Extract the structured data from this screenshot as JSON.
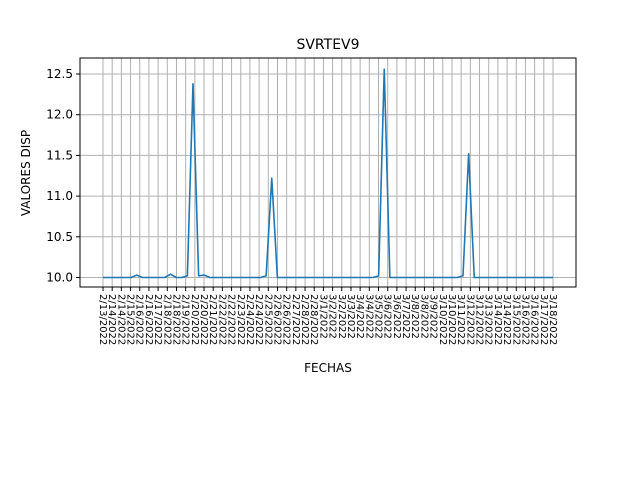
{
  "chart_data": {
    "type": "line",
    "title": "SVRTEV9",
    "xlabel": "FECHAS",
    "ylabel": "VALORES DISP",
    "ylim": [
      9.85,
      12.7
    ],
    "yticks": [
      "10.0",
      "10.5",
      "11.0",
      "11.5",
      "12.0",
      "12.5"
    ],
    "grid": true,
    "categories": [
      "2/13/2022",
      "2/14/2022",
      "2/15/2022",
      "2/16/2022",
      "2/17/2022",
      "2/18/2022",
      "2/19/2022",
      "2/20/2022",
      "2/21/2022",
      "2/22/2022",
      "2/23/2022",
      "2/24/2022",
      "2/25/2022",
      "2/26/2022",
      "2/27/2022",
      "2/28/2022",
      "3/1/2022",
      "3/2/2022",
      "3/3/2022",
      "3/4/2022",
      "3/5/2022",
      "3/6/2022",
      "3/7/2022",
      "3/8/2022",
      "3/9/2022",
      "3/10/2022",
      "3/11/2022",
      "3/12/2022",
      "3/13/2022",
      "3/14/2022",
      "3/15/2022",
      "3/16/2022",
      "3/17/2022",
      "3/18/2022"
    ],
    "x_labels": [
      "2/13/2022",
      "2/14/2022",
      "2/14/2022",
      "2/15/2022",
      "2/16/2022",
      "2/16/2022",
      "2/17/2022",
      "2/18/2022",
      "2/18/2022",
      "2/19/2022",
      "2/20/2022",
      "2/20/2022",
      "2/21/2022",
      "2/22/2022",
      "2/22/2022",
      "2/23/2022",
      "2/24/2022",
      "2/24/2022",
      "2/25/2022",
      "2/26/2022",
      "2/26/2022",
      "2/27/2022",
      "2/28/2022",
      "2/28/2022",
      "3/1/2022",
      "3/2/2022",
      "3/2/2022",
      "3/3/2022",
      "3/4/2022",
      "3/4/2022",
      "3/5/2022",
      "3/6/2022",
      "3/6/2022",
      "3/7/2022",
      "3/8/2022",
      "3/8/2022",
      "3/9/2022",
      "3/10/2022",
      "3/10/2022",
      "3/11/2022",
      "3/12/2022",
      "3/12/2022",
      "3/13/2022",
      "3/14/2022",
      "3/14/2022",
      "3/15/2022",
      "3/16/2022",
      "3/16/2022",
      "3/17/2022",
      "3/18/2022"
    ],
    "series": [
      {
        "color": "#1f77b4",
        "x": [
          "2/13/2022",
          "2/14/2022",
          "2/15/2022",
          "2/16/2022",
          "2/16/2022",
          "2/17/2022",
          "2/18/2022",
          "2/18/2022",
          "2/19/2022",
          "2/19/2022",
          "2/20/2022",
          "2/20/2022",
          "2/21/2022",
          "2/22/2022",
          "2/23/2022",
          "2/24/2022",
          "2/25/2022",
          "2/25/2022",
          "2/26/2022",
          "2/27/2022",
          "2/28/2022",
          "3/1/2022",
          "3/2/2022",
          "3/3/2022",
          "3/4/2022",
          "3/5/2022",
          "3/5/2022",
          "3/6/2022",
          "3/7/2022",
          "3/8/2022",
          "3/9/2022",
          "3/10/2022",
          "3/11/2022",
          "3/11/2022",
          "3/12/2022",
          "3/13/2022",
          "3/14/2022",
          "3/15/2022",
          "3/16/2022",
          "3/17/2022",
          "3/18/2022"
        ],
        "points": [
          [
            0,
            10.0
          ],
          [
            4,
            10.0
          ],
          [
            5,
            10.0
          ],
          [
            6,
            10.03
          ],
          [
            7,
            10.0
          ],
          [
            11,
            10.0
          ],
          [
            12,
            10.04
          ],
          [
            13,
            10.0
          ],
          [
            14,
            10.0
          ],
          [
            15,
            10.02
          ],
          [
            16,
            12.38
          ],
          [
            17,
            10.02
          ],
          [
            18,
            10.03
          ],
          [
            19,
            10.0
          ],
          [
            28,
            10.0
          ],
          [
            29,
            10.02
          ],
          [
            30,
            11.22
          ],
          [
            31,
            10.0
          ],
          [
            48,
            10.0
          ],
          [
            49,
            10.02
          ],
          [
            50,
            12.56
          ],
          [
            51,
            10.0
          ],
          [
            63,
            10.0
          ],
          [
            64,
            10.02
          ],
          [
            65,
            11.52
          ],
          [
            66,
            10.0
          ],
          [
            80,
            10.0
          ]
        ]
      }
    ]
  }
}
